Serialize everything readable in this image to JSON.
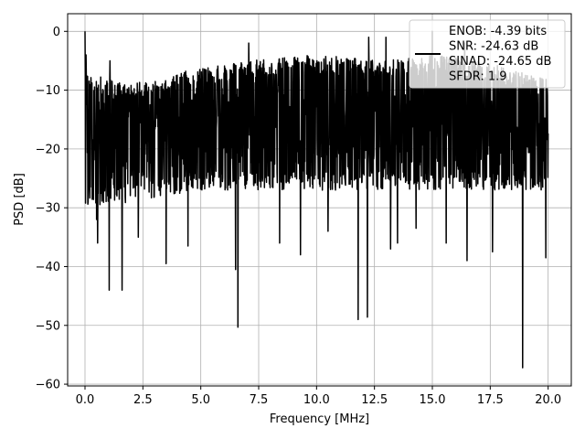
{
  "chart_data": {
    "type": "line",
    "xlabel": "Frequency [MHz]",
    "ylabel": "PSD [dB]",
    "xlim": [
      -0.75,
      21.0
    ],
    "ylim": [
      -60.3,
      3.0
    ],
    "xticks": [
      0.0,
      2.5,
      5.0,
      7.5,
      10.0,
      12.5,
      15.0,
      17.5,
      20.0
    ],
    "xtick_labels": [
      "0.0",
      "2.5",
      "5.0",
      "7.5",
      "10.0",
      "12.5",
      "15.0",
      "17.5",
      "20.0"
    ],
    "yticks": [
      0,
      -10,
      -20,
      -30,
      -40,
      -50,
      -60
    ],
    "ytick_labels": [
      "0",
      "−10",
      "−20",
      "−30",
      "−40",
      "−50",
      "−60"
    ],
    "grid": true,
    "legend_position": "top-right",
    "series": [
      {
        "name": "ENOB: -4.39 bits\nSNR: -24.63 dB\nSINAD: -24.65 dB\nSFDR: 1.9",
        "color": "#000000",
        "x_range": [
          0.0,
          20.0
        ],
        "envelope_upper": [
          [
            0.0,
            -7
          ],
          [
            2.0,
            -9
          ],
          [
            4.0,
            -7
          ],
          [
            7.0,
            -5
          ],
          [
            10.0,
            -4
          ],
          [
            13.0,
            -5
          ],
          [
            15.0,
            -4
          ],
          [
            17.0,
            -5
          ],
          [
            20.0,
            -8
          ]
        ],
        "envelope_lower": [
          [
            0.0,
            -27
          ],
          [
            2.0,
            -26
          ],
          [
            5.0,
            -24
          ],
          [
            10.0,
            -24
          ],
          [
            15.0,
            -24
          ],
          [
            20.0,
            -24
          ]
        ],
        "peaks": [
          [
            0.0,
            0.0
          ],
          [
            0.05,
            -4
          ],
          [
            1.08,
            -5
          ],
          [
            7.07,
            -2
          ],
          [
            12.25,
            -1
          ],
          [
            13.0,
            -1
          ],
          [
            15.0,
            0
          ],
          [
            16.4,
            -2
          ]
        ],
        "dips": [
          [
            0.5,
            -32
          ],
          [
            0.55,
            -36
          ],
          [
            1.05,
            -44
          ],
          [
            1.6,
            -44
          ],
          [
            2.3,
            -35
          ],
          [
            3.5,
            -39.5
          ],
          [
            4.45,
            -36.5
          ],
          [
            6.5,
            -40.5
          ],
          [
            6.6,
            -50.3
          ],
          [
            8.4,
            -36
          ],
          [
            9.3,
            -38
          ],
          [
            10.5,
            -34
          ],
          [
            11.8,
            -49
          ],
          [
            12.2,
            -48.6
          ],
          [
            13.2,
            -37
          ],
          [
            13.5,
            -36
          ],
          [
            14.3,
            -33.5
          ],
          [
            15.6,
            -36
          ],
          [
            16.5,
            -39
          ],
          [
            17.6,
            -37.5
          ],
          [
            18.9,
            -57.2
          ],
          [
            19.9,
            -38.5
          ]
        ]
      }
    ]
  }
}
